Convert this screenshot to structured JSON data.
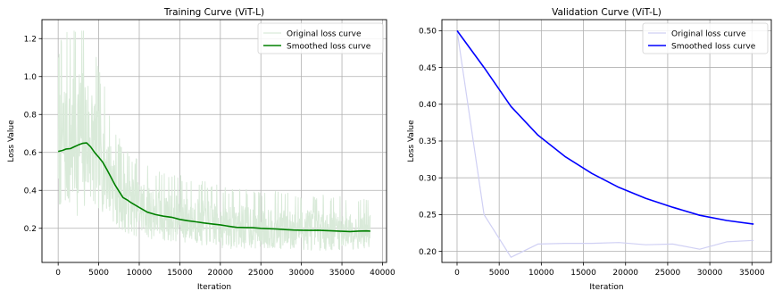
{
  "chart_data": [
    {
      "type": "line",
      "title": "Training Curve (ViT-L)",
      "xlabel": "Iteration",
      "ylabel": "Loss Value",
      "xlim": [
        -2000,
        40500
      ],
      "ylim": [
        0.02,
        1.3
      ],
      "xticks": [
        0,
        5000,
        10000,
        15000,
        20000,
        25000,
        30000,
        35000,
        40000
      ],
      "yticks": [
        0.2,
        0.4,
        0.6,
        0.8,
        1.0,
        1.2
      ],
      "xtick_labels": [
        "0",
        "5000",
        "10000",
        "15000",
        "20000",
        "25000",
        "30000",
        "35000",
        "40000"
      ],
      "ytick_labels": [
        "0.2",
        "0.4",
        "0.6",
        "0.8",
        "1.0",
        "1.2"
      ],
      "grid": true,
      "legend": "top-right",
      "noisy_series_seed": 7,
      "series": [
        {
          "name": "Original loss curve",
          "color": "#d9ead9",
          "envelope": {
            "x": [
              0,
              1000,
              2000,
              3000,
              4000,
              5000,
              6000,
              7000,
              8000,
              10000,
              12000,
              15000,
              20000,
              25000,
              30000,
              35000,
              38500
            ],
            "center": [
              0.61,
              0.62,
              0.64,
              0.65,
              0.62,
              0.56,
              0.5,
              0.4,
              0.34,
              0.3,
              0.27,
              0.25,
              0.21,
              0.2,
              0.19,
              0.185,
              0.185
            ],
            "amplitude": [
              0.35,
              0.38,
              0.42,
              0.42,
              0.36,
              0.3,
              0.25,
              0.2,
              0.18,
              0.16,
              0.15,
              0.14,
              0.13,
              0.12,
              0.12,
              0.11,
              0.1
            ]
          }
        },
        {
          "name": "Smoothed loss curve",
          "color": "#008000",
          "x": [
            0,
            500,
            1000,
            1500,
            2000,
            2500,
            3000,
            3500,
            4000,
            4500,
            5000,
            5500,
            6000,
            6500,
            7000,
            7500,
            8000,
            8500,
            9000,
            10000,
            11000,
            12000,
            13000,
            14000,
            15000,
            16000,
            17000,
            18000,
            19000,
            20000,
            21000,
            22000,
            23000,
            24000,
            25000,
            26000,
            27000,
            28000,
            29000,
            30000,
            31000,
            32000,
            33000,
            34000,
            35000,
            36000,
            37000,
            38000,
            38500
          ],
          "y": [
            0.605,
            0.61,
            0.618,
            0.62,
            0.63,
            0.64,
            0.648,
            0.65,
            0.63,
            0.6,
            0.575,
            0.548,
            0.51,
            0.47,
            0.43,
            0.395,
            0.362,
            0.35,
            0.335,
            0.31,
            0.285,
            0.272,
            0.264,
            0.258,
            0.247,
            0.24,
            0.234,
            0.228,
            0.223,
            0.218,
            0.211,
            0.205,
            0.204,
            0.203,
            0.2,
            0.198,
            0.196,
            0.193,
            0.191,
            0.19,
            0.189,
            0.19,
            0.188,
            0.186,
            0.184,
            0.183,
            0.185,
            0.186,
            0.185
          ]
        }
      ]
    },
    {
      "type": "line",
      "title": "Validation Curve (ViT-L)",
      "xlabel": "Iteration",
      "ylabel": "Loss Value",
      "xlim": [
        -1800,
        37300
      ],
      "ylim": [
        0.185,
        0.515
      ],
      "xticks": [
        0,
        5000,
        10000,
        15000,
        20000,
        25000,
        30000,
        35000
      ],
      "yticks": [
        0.2,
        0.25,
        0.3,
        0.35,
        0.4,
        0.45,
        0.5
      ],
      "xtick_labels": [
        "0",
        "5000",
        "10000",
        "15000",
        "20000",
        "25000",
        "30000",
        "35000"
      ],
      "ytick_labels": [
        "0.20",
        "0.25",
        "0.30",
        "0.35",
        "0.40",
        "0.45",
        "0.50"
      ],
      "grid": true,
      "legend": "top-right",
      "series": [
        {
          "name": "Original loss curve",
          "color": "#d0d0f4",
          "x": [
            0,
            3200,
            6400,
            9600,
            12800,
            16000,
            19200,
            22400,
            25600,
            28800,
            32000,
            35200
          ],
          "y": [
            0.5,
            0.25,
            0.192,
            0.21,
            0.211,
            0.211,
            0.212,
            0.209,
            0.21,
            0.203,
            0.213,
            0.215
          ]
        },
        {
          "name": "Smoothed loss curve",
          "color": "#0000ff",
          "x": [
            0,
            3200,
            6400,
            9600,
            12800,
            16000,
            19200,
            22400,
            25600,
            28800,
            32000,
            35200
          ],
          "y": [
            0.5,
            0.45,
            0.397,
            0.358,
            0.329,
            0.306,
            0.287,
            0.272,
            0.26,
            0.249,
            0.242,
            0.237
          ]
        }
      ]
    }
  ]
}
